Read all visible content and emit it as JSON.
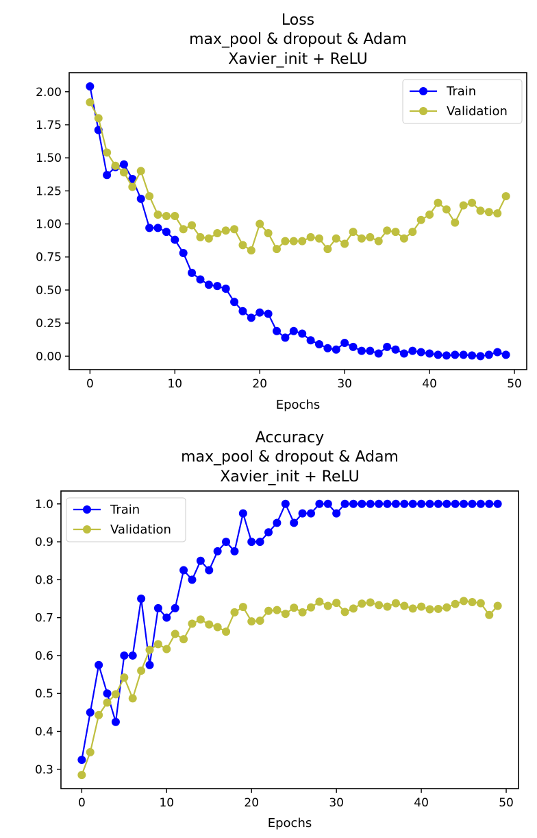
{
  "chart_data": [
    {
      "type": "line",
      "title": [
        "Loss",
        "max_pool & dropout & Adam",
        "Xavier_init + ReLU"
      ],
      "xlabel": "Epochs",
      "ylabel": "",
      "xlim": [
        -2.45,
        51.45
      ],
      "ylim": [
        -0.102,
        2.144
      ],
      "xticks": [
        0,
        10,
        20,
        30,
        40,
        50
      ],
      "yticks": [
        0.0,
        0.25,
        0.5,
        0.75,
        1.0,
        1.25,
        1.5,
        1.75,
        2.0
      ],
      "xtick_labels": [
        "0",
        "10",
        "20",
        "30",
        "40",
        "50"
      ],
      "ytick_labels": [
        "0.00",
        "0.25",
        "0.50",
        "0.75",
        "1.00",
        "1.25",
        "1.50",
        "1.75",
        "2.00"
      ],
      "legend_position": "top-right",
      "x": [
        0,
        1,
        2,
        3,
        4,
        5,
        6,
        7,
        8,
        9,
        10,
        11,
        12,
        13,
        14,
        15,
        16,
        17,
        18,
        19,
        20,
        21,
        22,
        23,
        24,
        25,
        26,
        27,
        28,
        29,
        30,
        31,
        32,
        33,
        34,
        35,
        36,
        37,
        38,
        39,
        40,
        41,
        42,
        43,
        44,
        45,
        46,
        47,
        48,
        49
      ],
      "series": [
        {
          "name": "Train",
          "color": "#0000ff",
          "values": [
            2.04,
            1.71,
            1.37,
            1.43,
            1.45,
            1.34,
            1.19,
            0.97,
            0.97,
            0.94,
            0.88,
            0.78,
            0.63,
            0.58,
            0.54,
            0.53,
            0.51,
            0.41,
            0.34,
            0.29,
            0.33,
            0.32,
            0.19,
            0.14,
            0.19,
            0.17,
            0.12,
            0.09,
            0.06,
            0.05,
            0.1,
            0.07,
            0.04,
            0.04,
            0.02,
            0.07,
            0.05,
            0.02,
            0.04,
            0.03,
            0.02,
            0.01,
            0.005,
            0.01,
            0.01,
            0.005,
            0.0,
            0.01,
            0.03,
            0.01
          ]
        },
        {
          "name": "Validation",
          "color": "#bfbf3f",
          "values": [
            1.92,
            1.8,
            1.54,
            1.44,
            1.39,
            1.28,
            1.4,
            1.21,
            1.07,
            1.06,
            1.06,
            0.96,
            0.99,
            0.9,
            0.89,
            0.93,
            0.95,
            0.96,
            0.84,
            0.8,
            1.0,
            0.93,
            0.81,
            0.87,
            0.87,
            0.87,
            0.9,
            0.89,
            0.81,
            0.89,
            0.85,
            0.94,
            0.89,
            0.9,
            0.87,
            0.95,
            0.94,
            0.89,
            0.94,
            1.03,
            1.07,
            1.16,
            1.11,
            1.01,
            1.14,
            1.16,
            1.1,
            1.09,
            1.08,
            1.21
          ]
        }
      ]
    },
    {
      "type": "line",
      "title": [
        "Accuracy",
        "max_pool & dropout & Adam",
        "Xavier_init + ReLU"
      ],
      "xlabel": "Epochs",
      "ylabel": "",
      "xlim": [
        -2.45,
        51.45
      ],
      "ylim": [
        0.249,
        1.034
      ],
      "xticks": [
        0,
        10,
        20,
        30,
        40,
        50
      ],
      "yticks": [
        0.3,
        0.4,
        0.5,
        0.6,
        0.7,
        0.8,
        0.9,
        1.0
      ],
      "xtick_labels": [
        "0",
        "10",
        "20",
        "30",
        "40",
        "50"
      ],
      "ytick_labels": [
        "0.3",
        "0.4",
        "0.5",
        "0.6",
        "0.7",
        "0.8",
        "0.9",
        "1.0"
      ],
      "legend_position": "top-left",
      "x": [
        0,
        1,
        2,
        3,
        4,
        5,
        6,
        7,
        8,
        9,
        10,
        11,
        12,
        13,
        14,
        15,
        16,
        17,
        18,
        19,
        20,
        21,
        22,
        23,
        24,
        25,
        26,
        27,
        28,
        29,
        30,
        31,
        32,
        33,
        34,
        35,
        36,
        37,
        38,
        39,
        40,
        41,
        42,
        43,
        44,
        45,
        46,
        47,
        48,
        49
      ],
      "series": [
        {
          "name": "Train",
          "color": "#0000ff",
          "values": [
            0.325,
            0.45,
            0.575,
            0.5,
            0.425,
            0.6,
            0.6,
            0.75,
            0.575,
            0.725,
            0.7,
            0.725,
            0.825,
            0.8,
            0.85,
            0.825,
            0.875,
            0.9,
            0.875,
            0.975,
            0.9,
            0.9,
            0.925,
            0.95,
            1.0,
            0.95,
            0.975,
            0.975,
            1.0,
            1.0,
            0.975,
            1.0,
            1.0,
            1.0,
            1.0,
            1.0,
            1.0,
            1.0,
            1.0,
            1.0,
            1.0,
            1.0,
            1.0,
            1.0,
            1.0,
            1.0,
            1.0,
            1.0,
            1.0,
            1.0
          ]
        },
        {
          "name": "Validation",
          "color": "#bfbf3f",
          "values": [
            0.285,
            0.345,
            0.443,
            0.476,
            0.498,
            0.542,
            0.487,
            0.56,
            0.615,
            0.63,
            0.617,
            0.657,
            0.643,
            0.684,
            0.695,
            0.682,
            0.675,
            0.663,
            0.714,
            0.728,
            0.69,
            0.692,
            0.718,
            0.72,
            0.71,
            0.726,
            0.714,
            0.727,
            0.742,
            0.731,
            0.739,
            0.715,
            0.724,
            0.737,
            0.74,
            0.733,
            0.729,
            0.738,
            0.731,
            0.724,
            0.729,
            0.722,
            0.723,
            0.727,
            0.736,
            0.744,
            0.741,
            0.738,
            0.707,
            0.731
          ]
        }
      ]
    }
  ]
}
